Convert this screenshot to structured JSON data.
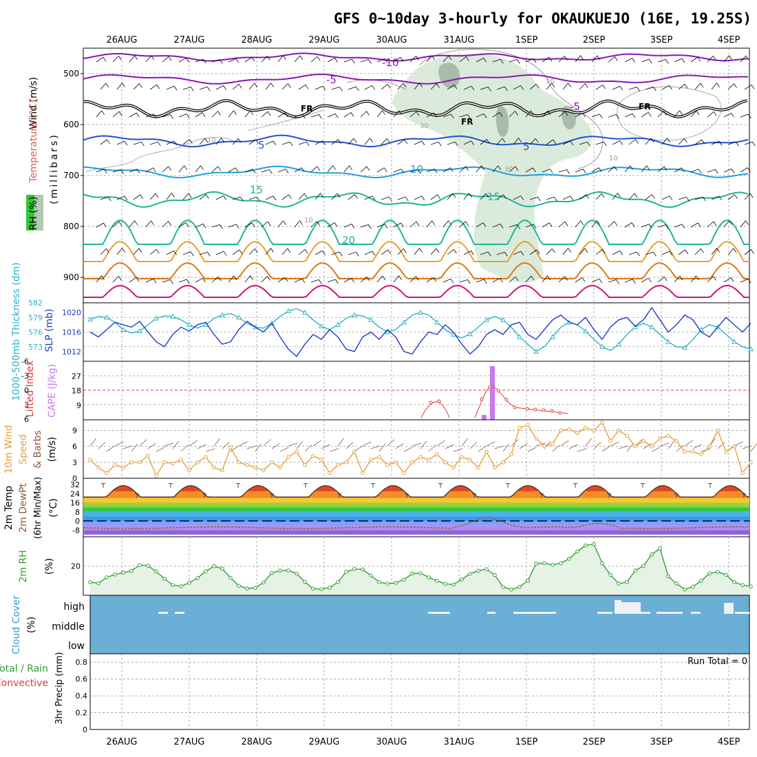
{
  "title": "GFS 0~10day 3-hourly for OKAUKUEJO (16E, 19.25S)",
  "date_labels": [
    "26AUG",
    "27AUG",
    "28AUG",
    "29AUG",
    "30AUG",
    "31AUG",
    "1SEP",
    "2SEP",
    "3SEP",
    "4SEP"
  ],
  "colors": {
    "purple": "#8a14b4",
    "blue": "#1e50d2",
    "cyan": "#1ea0dc",
    "teal": "#1eb496",
    "orange": "#e6a032",
    "dark_orange": "#dc7814",
    "magenta": "#c81478",
    "rh_fill": "#d2e6d2",
    "rh_dark": "#a0b4a0",
    "thickness": "#28b4c8",
    "slp": "#1e3cc8",
    "lifted": "#dc3c3c",
    "cape": "#c878f0",
    "wind": "#e6a03c",
    "barb": "#8c5a3c",
    "dewpt": "#a05a3c",
    "rh2m": "#32a032",
    "cloud_bg": "#6baed6",
    "cloud": "#f0f0f5"
  },
  "panels": {
    "upper": {
      "y_axis_label": "(millibars)",
      "legend": {
        "wind": "Wind (m/s)",
        "temperature": "Temperature (°C)",
        "rh": "RH (%)"
      },
      "ticks": [
        "500",
        "600",
        "700",
        "800",
        "900"
      ],
      "contour_labels": [
        "-10",
        "-5",
        "-5",
        "5",
        "5",
        "10",
        "15",
        "15",
        "20",
        "FR",
        "FR",
        "FR",
        "FR",
        "10",
        "10",
        "10",
        "10",
        "30",
        "30"
      ]
    },
    "thickness_slp": {
      "legend_thickness": "1000-500mb Thickness (dm)",
      "legend_slp": "SLP (mb)",
      "left_ticks": [
        "582",
        "579",
        "576",
        "573"
      ],
      "right_ticks": [
        "1020",
        "1016",
        "1012"
      ]
    },
    "stability": {
      "legend_li": "Lifted Index",
      "legend_cape": "CAPE (J/kg)",
      "left_ticks": [
        "-6",
        "-3",
        "0",
        "3",
        "6"
      ],
      "right_ticks": [
        "27",
        "18",
        "9"
      ]
    },
    "wind10m": {
      "legend": [
        "10m Wind",
        "Speed",
        "& Barbs"
      ],
      "unit": "(m/s)",
      "ticks": [
        "9",
        "6",
        "3",
        "0"
      ]
    },
    "temp2m": {
      "legend": [
        "2m Temp",
        "2m DewPt",
        "(6hr Min/Max)"
      ],
      "unit": "(°C)",
      "ticks": [
        "32",
        "24",
        "16",
        "8",
        "0",
        "-8"
      ]
    },
    "rh2m": {
      "legend": "2m RH",
      "unit": "(%)",
      "ticks": [
        "20"
      ]
    },
    "cloud": {
      "legend": "Cloud Cover",
      "unit": "(%)",
      "levels": [
        "high",
        "middle",
        "low"
      ]
    },
    "precip": {
      "legend_total": "Total / Rain",
      "legend_conv": "Convective",
      "y_label": "3hr Precip (mm)",
      "ticks": [
        "0.8",
        "0.6",
        "0.4",
        "0.2",
        "0"
      ],
      "run_total": "Run Total = 0"
    }
  },
  "chart_data": [
    {
      "type": "line",
      "title": "1000-500mb Thickness (dm)",
      "x_step_hours": 3,
      "ylim": [
        570,
        582
      ],
      "series": [
        {
          "name": "1000-500mb Thickness (dm)",
          "values": [
            578.6,
            579.2,
            579.0,
            578.0,
            576.5,
            575.8,
            576.2,
            577.5,
            578.8,
            579.3,
            579.2,
            578.5,
            577.5,
            576.8,
            577.5,
            578.8,
            579.5,
            579.8,
            579.0,
            577.8,
            577.0,
            576.8,
            577.8,
            579.2,
            580.3,
            580.8,
            580.0,
            578.5,
            577.2,
            576.5,
            577.5,
            578.8,
            579.5,
            579.3,
            578.5,
            577.0,
            576.0,
            576.5,
            578.0,
            579.5,
            580.0,
            579.5,
            578.0,
            576.5,
            575.5,
            574.8,
            575.6,
            577.0,
            578.5,
            579.2,
            578.5,
            577.0,
            575.0,
            573.5,
            572.0,
            573.0,
            575.0,
            577.0,
            578.0,
            577.5,
            576.2,
            574.5,
            573.0,
            572.2,
            573.5,
            575.5,
            577.0,
            577.8,
            577.0,
            575.5,
            574.0,
            573.0,
            572.8,
            574.5,
            576.5,
            577.5,
            577.0,
            575.5,
            574.0,
            573.0,
            572.5
          ]
        }
      ]
    },
    {
      "type": "line",
      "title": "SLP (mb)",
      "x_step_hours": 3,
      "ylim": [
        1010,
        1022
      ],
      "series": [
        {
          "name": "SLP (mb)",
          "values": [
            1016.0,
            1015.0,
            1016.5,
            1018.0,
            1017.5,
            1017.0,
            1018.2,
            1016.0,
            1014.0,
            1013.0,
            1015.5,
            1017.0,
            1016.2,
            1017.5,
            1018.0,
            1015.5,
            1013.5,
            1014.0,
            1016.5,
            1018.2,
            1017.0,
            1016.0,
            1017.8,
            1015.0,
            1012.5,
            1011.0,
            1013.5,
            1015.5,
            1014.5,
            1016.5,
            1015.0,
            1012.5,
            1012.0,
            1015.0,
            1016.0,
            1014.5,
            1016.5,
            1015.0,
            1012.0,
            1011.5,
            1014.0,
            1016.0,
            1015.5,
            1017.5,
            1016.0,
            1013.5,
            1011.5,
            1013.0,
            1015.5,
            1016.5,
            1015.5,
            1017.5,
            1018.0,
            1015.5,
            1014.5,
            1016.5,
            1018.5,
            1019.5,
            1018.0,
            1017.5,
            1019.0,
            1016.5,
            1014.5,
            1017.0,
            1018.5,
            1019.0,
            1017.2,
            1018.5,
            1021.0,
            1018.5,
            1016.0,
            1017.5,
            1019.5,
            1018.5,
            1016.0,
            1015.0,
            1017.0,
            1019.0,
            1017.5,
            1016.0,
            1017.8
          ]
        }
      ]
    },
    {
      "type": "bar",
      "title": "CAPE (J/kg)",
      "x_step_hours": 3,
      "ylim": [
        0,
        36
      ],
      "series": [
        {
          "name": "CAPE (J/kg)",
          "values": [
            0,
            0,
            0,
            0,
            0,
            0,
            0,
            0,
            0,
            0,
            0,
            0,
            0,
            0,
            0,
            0,
            0,
            0,
            0,
            0,
            0,
            0,
            0,
            0,
            0,
            0,
            0,
            0,
            0,
            0,
            0,
            0,
            0,
            0,
            0,
            0,
            0,
            0,
            0,
            0,
            0,
            0,
            0,
            0,
            0,
            0,
            0,
            0,
            0,
            0,
            0,
            0,
            0,
            0,
            0,
            0,
            0,
            0,
            0,
            0,
            0,
            0,
            0,
            0,
            0,
            0,
            0,
            0,
            0,
            0,
            0,
            0,
            0,
            0,
            0,
            0,
            0,
            0,
            0,
            0,
            0
          ]
        }
      ]
    },
    {
      "type": "line",
      "title": "10m Wind Speed (m/s)",
      "x_step_hours": 3,
      "ylim": [
        0,
        11
      ],
      "series": [
        {
          "name": "10m Wind Speed",
          "values": [
            3.5,
            2.0,
            1.0,
            2.5,
            2.0,
            3.0,
            3.0,
            4.2,
            0.5,
            3.0,
            2.8,
            3.5,
            1.5,
            3.0,
            4.0,
            2.0,
            1.5,
            5.8,
            3.0,
            2.5,
            2.0,
            1.5,
            3.0,
            2.0,
            4.0,
            5.0,
            2.5,
            4.2,
            3.5,
            1.0,
            2.5,
            3.0,
            5.0,
            1.0,
            3.5,
            4.0,
            2.5,
            3.0,
            1.0,
            3.0,
            4.0,
            3.5,
            4.5,
            3.0,
            2.0,
            4.0,
            3.5,
            2.0,
            5.0,
            2.0,
            3.0,
            4.5,
            9.5,
            10.0,
            7.5,
            6.0,
            6.5,
            9.0,
            9.2,
            8.5,
            9.5,
            9.0,
            10.5,
            7.0,
            9.0,
            8.0,
            6.0,
            7.0,
            6.0,
            7.5,
            8.0,
            7.0,
            5.0,
            5.0,
            4.5,
            6.0,
            9.0,
            5.0,
            6.0,
            1.0,
            3.0
          ]
        }
      ]
    },
    {
      "type": "line",
      "title": "2m RH (%)",
      "x_step_hours": 3,
      "ylim": [
        0,
        40
      ],
      "series": [
        {
          "name": "2m RH",
          "values": [
            9.0,
            8.2,
            12.3,
            14.2,
            15.5,
            16.7,
            20.6,
            20.2,
            16.3,
            11.3,
            7.0,
            6.2,
            8.5,
            11.7,
            16.4,
            19.9,
            18.2,
            11.9,
            6.5,
            4.7,
            5.1,
            8.7,
            15.3,
            16.9,
            17.0,
            14.8,
            9.2,
            4.5,
            4.2,
            5.2,
            9.0,
            16.0,
            18.0,
            17.7,
            13.5,
            9.0,
            7.9,
            8.5,
            10.7,
            14.8,
            15.1,
            12.3,
            9.9,
            7.8,
            7.4,
            10.8,
            14.7,
            16.8,
            17.8,
            13.9,
            5.7,
            3.9,
            5.8,
            10.0,
            21.6,
            22.0,
            20.8,
            22.0,
            25.0,
            30.0,
            34.1,
            35.0,
            22.0,
            14.0,
            8.0,
            9.0,
            17.0,
            20.0,
            28.0,
            32.0,
            13.0,
            8.0,
            4.0,
            6.0,
            10.0,
            15.0,
            16.0,
            14.0,
            9.0,
            7.0,
            6.0
          ]
        }
      ]
    },
    {
      "type": "bar",
      "title": "3hr Precip (mm)",
      "x_step_hours": 3,
      "ylim": [
        0,
        0.9
      ],
      "series": [
        {
          "name": "Total / Rain",
          "values": [
            0,
            0,
            0,
            0,
            0,
            0,
            0,
            0,
            0,
            0,
            0,
            0,
            0,
            0,
            0,
            0,
            0,
            0,
            0,
            0,
            0,
            0,
            0,
            0,
            0,
            0,
            0,
            0,
            0,
            0,
            0,
            0,
            0,
            0,
            0,
            0,
            0,
            0,
            0,
            0,
            0,
            0,
            0,
            0,
            0,
            0,
            0,
            0,
            0,
            0,
            0,
            0,
            0,
            0,
            0,
            0,
            0,
            0,
            0,
            0,
            0,
            0,
            0,
            0,
            0,
            0,
            0,
            0,
            0,
            0,
            0,
            0,
            0,
            0,
            0,
            0,
            0,
            0,
            0,
            0,
            0
          ]
        }
      ]
    }
  ]
}
